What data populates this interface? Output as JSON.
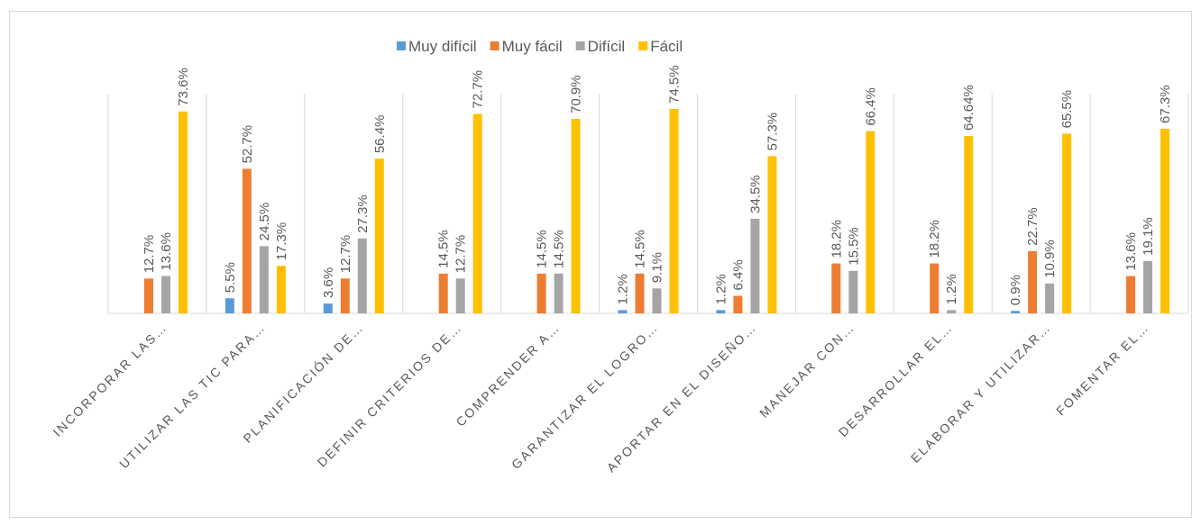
{
  "chart_data": {
    "type": "bar",
    "categories": [
      "INCORPORAR LAS…",
      "UTILIZAR LAS TIC PARA…",
      "PLANIFICACIÓN DE…",
      "DEFINIR CRITERIOS DE…",
      "COMPRENDER A…",
      "GARANTIZAR EL LOGRO…",
      "APORTAR EN EL DISEÑO…",
      "MANEJAR CON…",
      "DESARROLLAR EL…",
      "ELABORAR Y UTILIZAR…",
      "FOMENTAR EL…"
    ],
    "series": [
      {
        "name": "Muy difícil",
        "color": "#5b9bd5",
        "values": [
          null,
          5.5,
          3.6,
          null,
          null,
          1.2,
          1.2,
          null,
          null,
          0.9,
          null
        ],
        "value_labels": [
          null,
          "5.5%",
          "3.6%",
          null,
          null,
          "1.2%",
          "1.2%",
          null,
          null,
          "0.9%",
          null
        ]
      },
      {
        "name": "Muy fácil",
        "color": "#ed7d31",
        "values": [
          12.7,
          52.7,
          12.7,
          14.5,
          14.5,
          14.5,
          6.4,
          18.2,
          18.2,
          22.7,
          13.6
        ],
        "value_labels": [
          "12.7%",
          "52.7%",
          "12.7%",
          "14.5%",
          "14.5%",
          "14.5%",
          "6.4%",
          "18.2%",
          "18.2%",
          "22.7%",
          "13.6%"
        ]
      },
      {
        "name": "Difícil",
        "color": "#a5a5a5",
        "values": [
          13.6,
          24.5,
          27.3,
          12.7,
          14.5,
          9.1,
          34.5,
          15.5,
          1.2,
          10.9,
          19.1
        ],
        "value_labels": [
          "13.6%",
          "24.5%",
          "27.3%",
          "12.7%",
          "14.5%",
          "9.1%",
          "34.5%",
          "15.5%",
          "1.2%",
          "10.9%",
          "19.1%"
        ]
      },
      {
        "name": "Fácil",
        "color": "#ffc000",
        "values": [
          73.6,
          17.3,
          56.4,
          72.7,
          70.9,
          74.5,
          57.3,
          66.4,
          64.64,
          65.5,
          67.3
        ],
        "value_labels": [
          "73.6%",
          "17.3%",
          "56.4%",
          "72.7%",
          "70.9%",
          "74.5%",
          "57.3%",
          "66.4%",
          "64.64%",
          "65.5%",
          "67.3%"
        ]
      }
    ],
    "legend": "top"
  }
}
